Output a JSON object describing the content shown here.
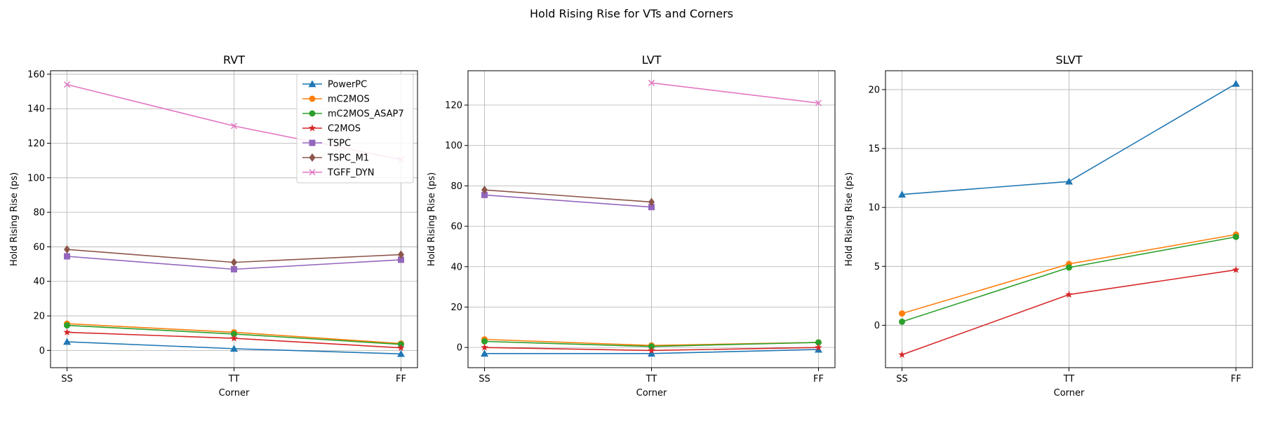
{
  "figure": {
    "suptitle": "Hold Rising Rise for VTs and Corners"
  },
  "chart_data": [
    {
      "type": "line",
      "title": "RVT",
      "xlabel": "Corner",
      "ylabel": "Hold Rising Rise (ps)",
      "categories": [
        "SS",
        "TT",
        "FF"
      ],
      "ylim": [
        -10,
        162
      ],
      "yticks": [
        0,
        20,
        40,
        60,
        80,
        100,
        120,
        140,
        160
      ],
      "grid": true,
      "legend": "upper-right",
      "series": [
        {
          "name": "PowerPC",
          "color": "#1f77b4",
          "marker": "triangle",
          "values": [
            5.0,
            1.0,
            -2.0
          ]
        },
        {
          "name": "mC2MOS",
          "color": "#ff7f0e",
          "marker": "circle",
          "values": [
            15.5,
            10.5,
            4.0
          ]
        },
        {
          "name": "mC2MOS_ASAP7",
          "color": "#2ca02c",
          "marker": "circle",
          "values": [
            14.5,
            9.5,
            3.5
          ]
        },
        {
          "name": "C2MOS",
          "color": "#d62728",
          "marker": "star",
          "values": [
            10.5,
            7.0,
            1.5
          ]
        },
        {
          "name": "TSPC",
          "color": "#9467bd",
          "marker": "square",
          "values": [
            54.5,
            47.0,
            52.5
          ]
        },
        {
          "name": "TSPC_M1",
          "color": "#8c564b",
          "marker": "diamond",
          "values": [
            58.5,
            51.0,
            55.5
          ]
        },
        {
          "name": "TGFF_DYN",
          "color": "#e377c2",
          "marker": "x",
          "values": [
            154.0,
            130.0,
            110.5
          ]
        }
      ]
    },
    {
      "type": "line",
      "title": "LVT",
      "xlabel": "Corner",
      "ylabel": "Hold Rising Rise (ps)",
      "categories": [
        "SS",
        "TT",
        "FF"
      ],
      "ylim": [
        -10,
        137
      ],
      "yticks": [
        0,
        20,
        40,
        60,
        80,
        100,
        120
      ],
      "grid": true,
      "series": [
        {
          "color": "#1f77b4",
          "marker": "triangle",
          "values": [
            -3.0,
            -3.0,
            -1.0
          ]
        },
        {
          "color": "#ff7f0e",
          "marker": "circle",
          "values": [
            4.0,
            1.0,
            2.5
          ]
        },
        {
          "color": "#2ca02c",
          "marker": "circle",
          "values": [
            3.0,
            0.5,
            2.5
          ]
        },
        {
          "color": "#d62728",
          "marker": "star",
          "values": [
            0.0,
            -1.5,
            0.0
          ]
        },
        {
          "color": "#9467bd",
          "marker": "square",
          "values": [
            75.5,
            69.5,
            null
          ]
        },
        {
          "color": "#8c564b",
          "marker": "diamond",
          "values": [
            78.0,
            72.0,
            null
          ]
        },
        {
          "color": "#e377c2",
          "marker": "x",
          "values": [
            null,
            131.0,
            121.0
          ]
        }
      ]
    },
    {
      "type": "line",
      "title": "SLVT",
      "xlabel": "Corner",
      "ylabel": "Hold Rising Rise (ps)",
      "categories": [
        "SS",
        "TT",
        "FF"
      ],
      "ylim": [
        -3.6,
        21.6
      ],
      "yticks": [
        0,
        5,
        10,
        15,
        20
      ],
      "grid": true,
      "series": [
        {
          "color": "#1f77b4",
          "marker": "triangle",
          "values": [
            11.1,
            12.2,
            20.5
          ]
        },
        {
          "color": "#ff7f0e",
          "marker": "circle",
          "values": [
            1.0,
            5.2,
            7.7
          ]
        },
        {
          "color": "#2ca02c",
          "marker": "circle",
          "values": [
            0.3,
            4.9,
            7.5
          ]
        },
        {
          "color": "#d62728",
          "marker": "star",
          "values": [
            -2.5,
            2.6,
            4.7
          ]
        }
      ]
    }
  ]
}
